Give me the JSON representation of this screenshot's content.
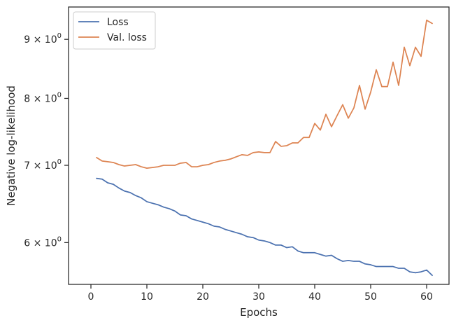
{
  "chart_data": {
    "type": "line",
    "xlabel": "Epochs",
    "ylabel": "Negative log-likelihood",
    "yscale": "log",
    "xlim": [
      -4,
      64
    ],
    "ylim": [
      5.52,
      9.6
    ],
    "xticks": [
      {
        "value": 0,
        "label": "0"
      },
      {
        "value": 10,
        "label": "10"
      },
      {
        "value": 20,
        "label": "20"
      },
      {
        "value": 30,
        "label": "30"
      },
      {
        "value": 40,
        "label": "40"
      },
      {
        "value": 50,
        "label": "50"
      },
      {
        "value": 60,
        "label": "60"
      }
    ],
    "yticks": [
      {
        "value": 6,
        "mantissa": "6",
        "base": "× 10",
        "exp": "0"
      },
      {
        "value": 7,
        "mantissa": "7",
        "base": "× 10",
        "exp": "0"
      },
      {
        "value": 8,
        "mantissa": "8",
        "base": "× 10",
        "exp": "0"
      },
      {
        "value": 9,
        "mantissa": "9",
        "base": "× 10",
        "exp": "0"
      }
    ],
    "grid": false,
    "legend_position": "top-left",
    "x": [
      1,
      2,
      3,
      4,
      5,
      6,
      7,
      8,
      9,
      10,
      11,
      12,
      13,
      14,
      15,
      16,
      17,
      18,
      19,
      20,
      21,
      22,
      23,
      24,
      25,
      26,
      27,
      28,
      29,
      30,
      31,
      32,
      33,
      34,
      35,
      36,
      37,
      38,
      39,
      40,
      41,
      42,
      43,
      44,
      45,
      46,
      47,
      48,
      49,
      50,
      51,
      52,
      53,
      54,
      55,
      56,
      57,
      58,
      59,
      60,
      61
    ],
    "series": [
      {
        "name": "Loss",
        "color": "#4c72b0",
        "values": [
          6.82,
          6.81,
          6.76,
          6.74,
          6.69,
          6.65,
          6.63,
          6.59,
          6.56,
          6.51,
          6.49,
          6.47,
          6.44,
          6.42,
          6.39,
          6.34,
          6.33,
          6.29,
          6.27,
          6.25,
          6.23,
          6.2,
          6.19,
          6.16,
          6.14,
          6.12,
          6.1,
          6.07,
          6.06,
          6.03,
          6.02,
          6.0,
          5.97,
          5.97,
          5.94,
          5.95,
          5.9,
          5.88,
          5.88,
          5.88,
          5.86,
          5.84,
          5.85,
          5.81,
          5.78,
          5.79,
          5.78,
          5.78,
          5.75,
          5.74,
          5.72,
          5.72,
          5.72,
          5.72,
          5.7,
          5.7,
          5.66,
          5.65,
          5.66,
          5.68,
          5.62
        ]
      },
      {
        "name": "Val. loss",
        "color": "#dd8452",
        "values": [
          7.11,
          7.06,
          7.05,
          7.04,
          7.01,
          6.99,
          7.0,
          7.01,
          6.98,
          6.96,
          6.97,
          6.98,
          7.0,
          7.0,
          7.0,
          7.03,
          7.04,
          6.98,
          6.98,
          7.0,
          7.01,
          7.04,
          7.06,
          7.07,
          7.09,
          7.12,
          7.15,
          7.14,
          7.18,
          7.19,
          7.18,
          7.18,
          7.34,
          7.27,
          7.28,
          7.32,
          7.32,
          7.4,
          7.4,
          7.61,
          7.51,
          7.75,
          7.56,
          7.73,
          7.9,
          7.69,
          7.85,
          8.21,
          7.83,
          8.1,
          8.47,
          8.19,
          8.19,
          8.6,
          8.21,
          8.86,
          8.54,
          8.86,
          8.7,
          9.35,
          9.29
        ]
      }
    ]
  }
}
